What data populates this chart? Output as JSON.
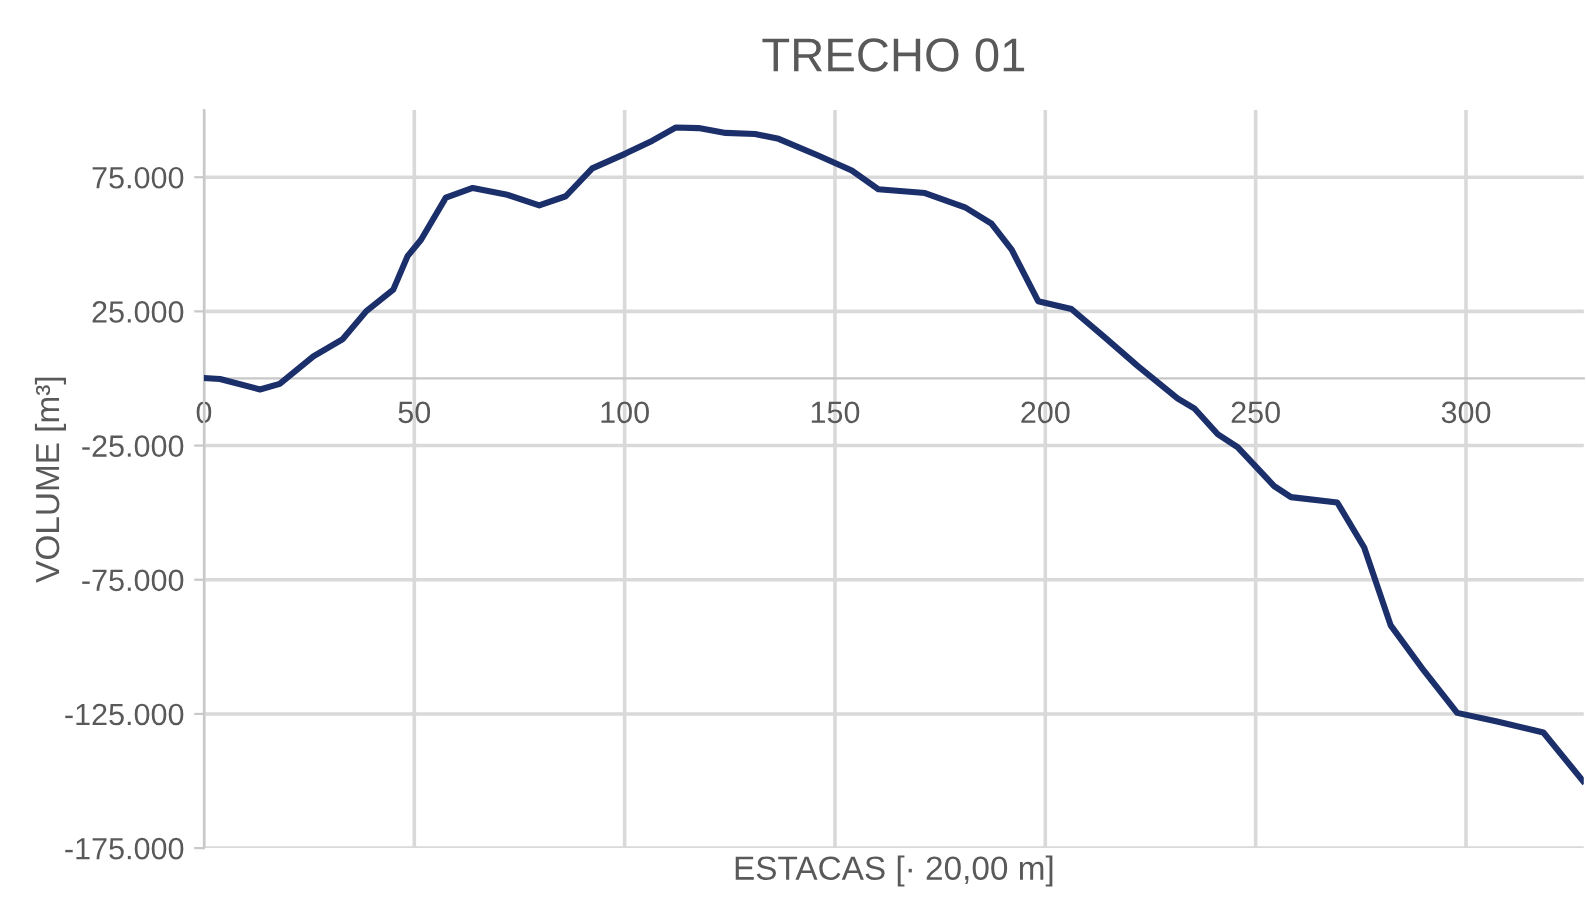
{
  "chart_data": {
    "type": "line",
    "title": "TRECHO 01",
    "xlabel": "ESTACAS [· 20,00 m]",
    "ylabel": "VOLUME [m³]",
    "x": [
      0,
      3.8,
      13.3,
      18,
      26,
      33,
      38.6,
      45,
      48.4,
      51.6,
      57.5,
      63.9,
      71.8,
      79.7,
      86,
      92.3,
      100.2,
      106.6,
      112.1,
      117.6,
      124,
      131,
      136.6,
      146,
      154,
      160.3,
      171.4,
      180.9,
      187.2,
      192,
      198.3,
      206.2,
      214,
      222,
      231.5,
      235.4,
      241,
      245.7,
      254.4,
      258.4,
      269.4,
      275.8,
      282.1,
      290,
      297.9,
      307.4,
      318.4,
      327.8
    ],
    "series": [
      {
        "color": "#1b2f6b",
        "values": [
          200,
          -200,
          -4100,
          -2000,
          8200,
          14700,
          25100,
          33100,
          45600,
          51700,
          67400,
          71000,
          68600,
          64500,
          67900,
          78300,
          83800,
          88600,
          93500,
          93300,
          91500,
          91100,
          89300,
          83100,
          77500,
          70500,
          69100,
          63800,
          57700,
          48000,
          28800,
          25900,
          15500,
          4600,
          -7500,
          -11100,
          -20800,
          -25600,
          -40100,
          -44200,
          -46200,
          -63000,
          -92000,
          -108900,
          -124600,
          -127800,
          -131900,
          -150000
        ]
      }
    ],
    "xlim": [
      0,
      328
    ],
    "xticks": [
      0,
      50,
      100,
      150,
      200,
      250,
      300
    ],
    "ylim": [
      -175000,
      100000
    ],
    "yticks": [
      {
        "value": 75000,
        "label": "75.000"
      },
      {
        "value": 25000,
        "label": "25.000"
      },
      {
        "value": -25000,
        "label": "-25.000"
      },
      {
        "value": -75000,
        "label": "-75.000"
      },
      {
        "value": -125000,
        "label": "-125.000"
      },
      {
        "value": -175000,
        "label": "-175.000"
      }
    ],
    "grid": true,
    "marker": "none",
    "line_style": "solid",
    "legend": false
  }
}
